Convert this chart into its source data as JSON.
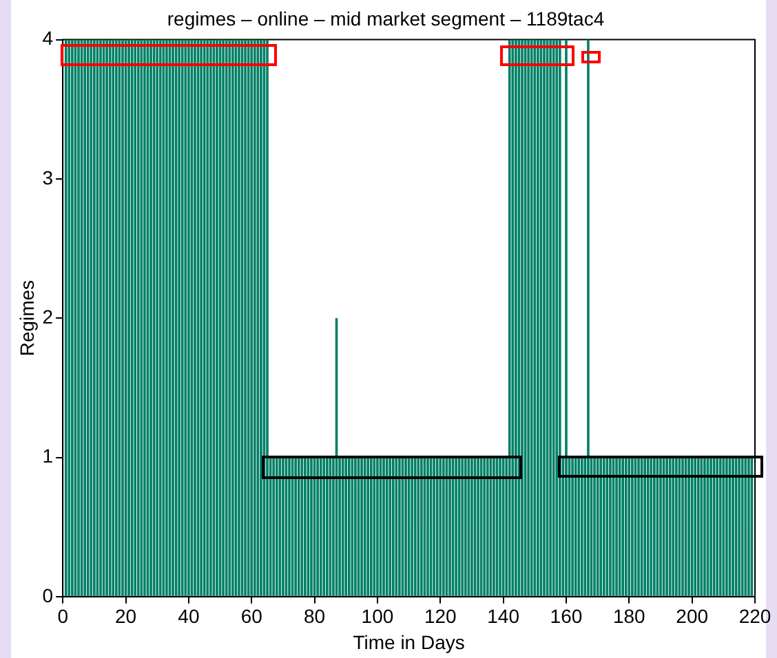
{
  "chart_data": {
    "type": "bar",
    "title": "regimes – online – mid market segment – 1189tac4",
    "xlabel": "Time in Days",
    "ylabel": "Regimes",
    "x": [
      1,
      2,
      3,
      4,
      5,
      6,
      7,
      8,
      9,
      10,
      11,
      12,
      13,
      14,
      15,
      16,
      17,
      18,
      19,
      20,
      21,
      22,
      23,
      24,
      25,
      26,
      27,
      28,
      29,
      30,
      31,
      32,
      33,
      34,
      35,
      36,
      37,
      38,
      39,
      40,
      41,
      42,
      43,
      44,
      45,
      46,
      47,
      48,
      49,
      50,
      51,
      52,
      53,
      54,
      55,
      56,
      57,
      58,
      59,
      60,
      61,
      62,
      63,
      64,
      65,
      66,
      67,
      68,
      69,
      70,
      71,
      72,
      73,
      74,
      75,
      76,
      77,
      78,
      79,
      80,
      81,
      82,
      83,
      84,
      85,
      86,
      87,
      88,
      89,
      90,
      91,
      92,
      93,
      94,
      95,
      96,
      97,
      98,
      99,
      100,
      101,
      102,
      103,
      104,
      105,
      106,
      107,
      108,
      109,
      110,
      111,
      112,
      113,
      114,
      115,
      116,
      117,
      118,
      119,
      120,
      121,
      122,
      123,
      124,
      125,
      126,
      127,
      128,
      129,
      130,
      131,
      132,
      133,
      134,
      135,
      136,
      137,
      138,
      139,
      140,
      141,
      142,
      143,
      144,
      145,
      146,
      147,
      148,
      149,
      150,
      151,
      152,
      153,
      154,
      155,
      156,
      157,
      158,
      159,
      160,
      161,
      162,
      163,
      164,
      165,
      166,
      167,
      168,
      169,
      170,
      171,
      172,
      173,
      174,
      175,
      176,
      177,
      178,
      179,
      180,
      181,
      182,
      183,
      184,
      185,
      186,
      187,
      188,
      189,
      190,
      191,
      192,
      193,
      194,
      195,
      196,
      197,
      198,
      199,
      200,
      201,
      202,
      203,
      204,
      205,
      206,
      207,
      208,
      209,
      210,
      211,
      212,
      213,
      214,
      215,
      216,
      217,
      218,
      219
    ],
    "values": [
      4,
      4,
      4,
      4,
      4,
      4,
      4,
      4,
      4,
      4,
      4,
      4,
      4,
      4,
      4,
      4,
      4,
      4,
      4,
      4,
      4,
      4,
      4,
      4,
      4,
      4,
      4,
      4,
      4,
      4,
      4,
      4,
      4,
      4,
      4,
      4,
      4,
      4,
      4,
      4,
      4,
      4,
      4,
      4,
      4,
      4,
      4,
      4,
      4,
      4,
      4,
      4,
      4,
      4,
      4,
      4,
      4,
      4,
      4,
      4,
      4,
      4,
      4,
      4,
      4,
      1,
      1,
      1,
      1,
      1,
      1,
      1,
      1,
      1,
      1,
      1,
      1,
      1,
      1,
      1,
      1,
      1,
      1,
      1,
      1,
      1,
      2,
      1,
      1,
      1,
      1,
      1,
      1,
      1,
      1,
      1,
      1,
      1,
      1,
      1,
      1,
      1,
      1,
      1,
      1,
      1,
      1,
      1,
      1,
      1,
      1,
      1,
      1,
      1,
      1,
      1,
      1,
      1,
      1,
      1,
      1,
      1,
      1,
      1,
      1,
      1,
      1,
      1,
      1,
      1,
      1,
      1,
      1,
      1,
      1,
      1,
      1,
      1,
      1,
      1,
      1,
      4,
      4,
      4,
      4,
      4,
      4,
      4,
      4,
      4,
      4,
      4,
      4,
      4,
      4,
      4,
      4,
      4,
      1,
      4,
      1,
      1,
      1,
      1,
      1,
      1,
      4,
      1,
      1,
      1,
      1,
      1,
      1,
      1,
      1,
      1,
      1,
      1,
      1,
      1,
      1,
      1,
      1,
      1,
      1,
      1,
      1,
      1,
      1,
      1,
      1,
      1,
      1,
      1,
      1,
      1,
      1,
      1,
      1,
      1,
      1,
      1,
      1,
      1,
      1,
      1,
      1,
      1,
      1,
      1,
      1,
      1,
      1,
      1,
      1,
      1,
      1,
      1,
      1
    ],
    "color": "#008066",
    "xlim": [
      0,
      220
    ],
    "xticks": [
      0,
      20,
      40,
      60,
      80,
      100,
      120,
      140,
      160,
      180,
      200,
      220
    ],
    "ylim": [
      0,
      4
    ],
    "yticks": [
      0,
      1,
      2,
      3,
      4
    ],
    "grid": false,
    "legend": false
  }
}
